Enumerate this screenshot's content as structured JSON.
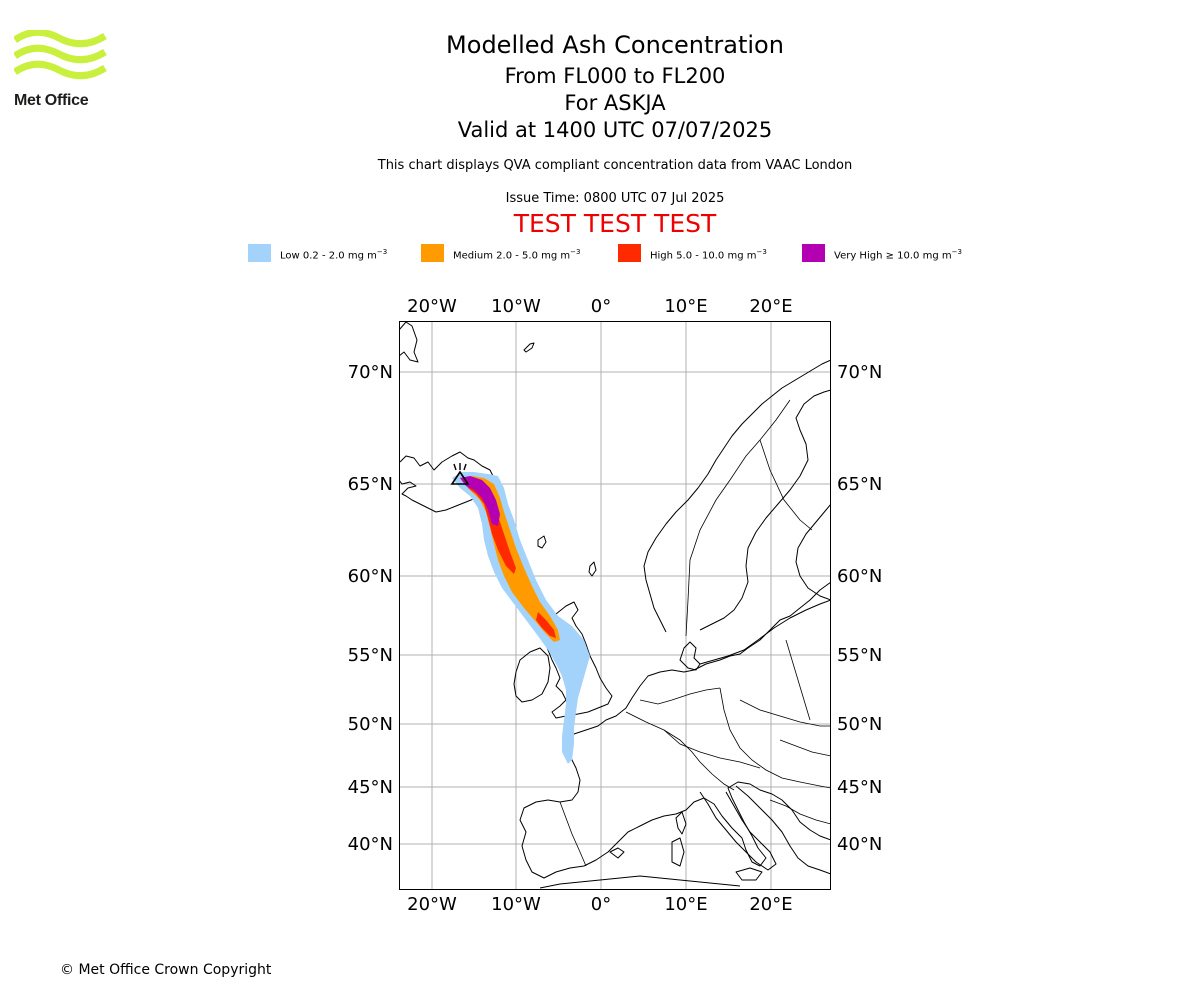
{
  "logo": {
    "text": "Met Office",
    "color": "#c8f03c"
  },
  "header": {
    "title": "Modelled Ash Concentration",
    "levels": "From FL000 to FL200",
    "volcano": "For ASKJA",
    "valid": "Valid at 1400 UTC 07/07/2025",
    "description": "This chart displays QVA compliant concentration data from VAAC London",
    "issue_time": "Issue Time: 0800 UTC 07 Jul 2025",
    "test_banner": "TEST TEST TEST"
  },
  "legend": [
    {
      "label": "Low 0.2 - 2.0 mg m",
      "color": "#a3d3fb"
    },
    {
      "label": "Medium 2.0 - 5.0 mg m",
      "color": "#ff9a00"
    },
    {
      "label": "High 5.0 - 10.0 mg m",
      "color": "#ff2a00"
    },
    {
      "label": "Very High ≥ 10.0 mg m",
      "color": "#b300b3"
    }
  ],
  "legend_unit_exponent": "−3",
  "map": {
    "lon_ticks": [
      "20°W",
      "10°W",
      "0°",
      "10°E",
      "20°E"
    ],
    "lat_ticks": [
      "70°N",
      "65°N",
      "60°N",
      "55°N",
      "50°N",
      "45°N",
      "40°N"
    ],
    "volcano_marker": "volcano-icon",
    "volcano_name": "ASKJA",
    "extent": {
      "lon_min": -24,
      "lon_max": 27,
      "lat_min": 37,
      "lat_max": 72
    }
  },
  "footer": {
    "copyright": "© Met Office Crown Copyright"
  }
}
